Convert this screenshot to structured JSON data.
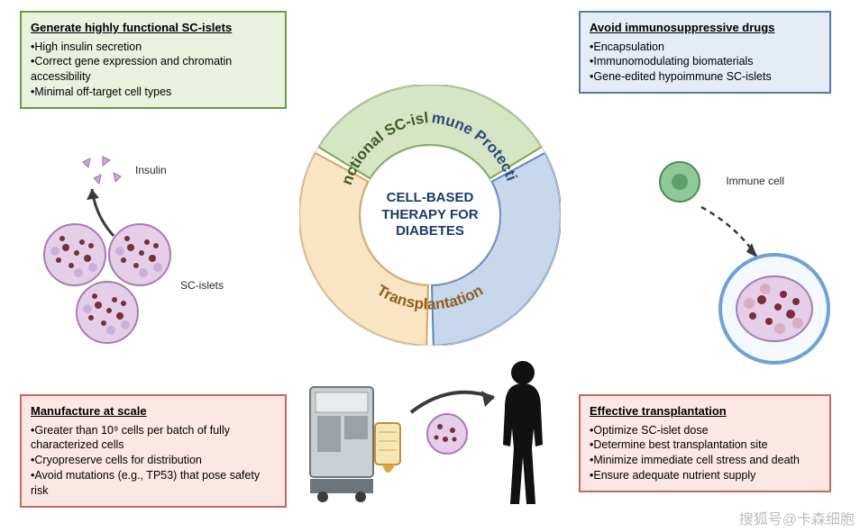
{
  "center_title": "CELL-BASED THERAPY FOR DIABETES",
  "ring": {
    "segments": [
      {
        "label": "Functional SC-islets",
        "fill": "#d6e6c4",
        "stroke": "#7fa653",
        "text_color": "#3d5a27"
      },
      {
        "label": "Immune Protection",
        "fill": "#c7d7ec",
        "stroke": "#5f86b8",
        "text_color": "#2b4a7a"
      },
      {
        "label": "Transplantation",
        "fill": "#f9e4c3",
        "stroke": "#d6a55f",
        "text_color": "#8a5f20"
      }
    ],
    "outer_radius": 145,
    "inner_radius": 78,
    "gap_deg": 3
  },
  "boxes": {
    "top_left": {
      "title": "Generate highly functional SC-islets",
      "bullets": [
        "High insulin secretion",
        "Correct gene expression and chromatin accessibility",
        "Minimal off-target cell types"
      ],
      "fill": "#eaf1df",
      "border": "#6f9b45"
    },
    "top_right": {
      "title": "Avoid immunosuppressive drugs",
      "bullets": [
        "Encapsulation",
        "Immunomodulating biomaterials",
        "Gene-edited hypoimmune SC-islets"
      ],
      "fill": "#e4ecf6",
      "border": "#5878a8"
    },
    "bottom_left": {
      "title": "Manufacture at scale",
      "bullets": [
        "Greater than 10⁹ cells per batch of fully characterized cells",
        "Cryopreserve cells for distribution",
        "Avoid mutations (e.g., TP53) that pose safety risk"
      ],
      "fill": "#fbe7e3",
      "border": "#c46a5a"
    },
    "bottom_right": {
      "title": "Effective transplantation",
      "bullets": [
        "Optimize SC-islet dose",
        "Determine best transplantation site",
        "Minimize immediate cell stress and death",
        "Ensure adequate nutrient supply"
      ],
      "fill": "#fbe7e3",
      "border": "#c46a5a"
    }
  },
  "labels": {
    "insulin": "Insulin",
    "sc_islets": "SC-islets",
    "immune_cell": "Immune cell"
  },
  "colors": {
    "islet_fill": "#e5cfe8",
    "islet_stroke": "#a87bb0",
    "islet_nucleus": "#7a2d3a",
    "immune_fill": "#8fc99a",
    "immune_stroke": "#4f8c5a",
    "capsule_stroke": "#6fa0d6",
    "arrow": "#3a3a3a",
    "insulin_granule": "#c9a7d6",
    "center_text": "#1b3a6b",
    "silhouette": "#111111",
    "machine_body": "#c9cfd3",
    "machine_dark": "#6e757a",
    "machine_accent": "#d7a93c"
  },
  "watermark": "搜狐号@卡森细胞"
}
